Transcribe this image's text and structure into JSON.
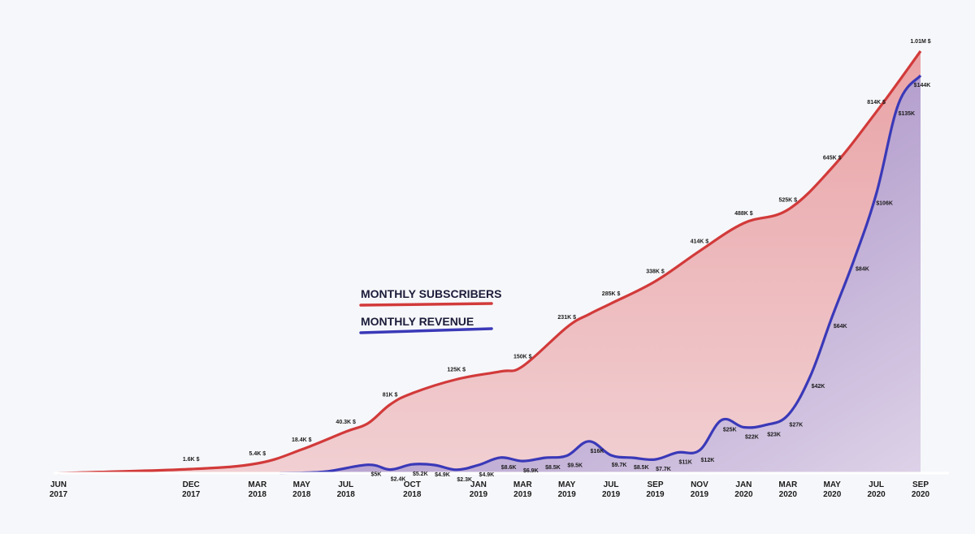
{
  "chart_data": {
    "type": "area",
    "x_ticks": [
      {
        "month": "JUN",
        "year": "2017"
      },
      {
        "month": "DEC",
        "year": "2017"
      },
      {
        "month": "MAR",
        "year": "2018"
      },
      {
        "month": "MAY",
        "year": "2018"
      },
      {
        "month": "JUL",
        "year": "2018"
      },
      {
        "month": "OCT",
        "year": "2018"
      },
      {
        "month": "JAN",
        "year": "2019"
      },
      {
        "month": "MAR",
        "year": "2019"
      },
      {
        "month": "MAY",
        "year": "2019"
      },
      {
        "month": "JUL",
        "year": "2019"
      },
      {
        "month": "SEP",
        "year": "2019"
      },
      {
        "month": "NOV",
        "year": "2019"
      },
      {
        "month": "JAN",
        "year": "2020"
      },
      {
        "month": "MAR",
        "year": "2020"
      },
      {
        "month": "MAY",
        "year": "2020"
      },
      {
        "month": "JUL",
        "year": "2020"
      },
      {
        "month": "SEP",
        "year": "2020"
      }
    ],
    "legend": [
      {
        "label": "MONTHLY SUBSCRIBERS",
        "color": "#d23a3a"
      },
      {
        "label": "MONTHLY REVENUE",
        "color": "#3a39b8"
      }
    ],
    "series": [
      {
        "name": "MONTHLY SUBSCRIBERS",
        "color": "#d23a3a",
        "fill_top": "#e9a3a6",
        "fill_bottom": "#f1cfd2",
        "points": [
          {
            "date": "2017-06",
            "value": 0
          },
          {
            "date": "2017-12",
            "value": 1600,
            "label": "1.6K $"
          },
          {
            "date": "2018-03",
            "value": 5400,
            "label": "5.4K $"
          },
          {
            "date": "2018-05",
            "value": 18400,
            "label": "18.4K $"
          },
          {
            "date": "2018-07",
            "value": 40300,
            "label": "40.3K $"
          },
          {
            "date": "2018-08",
            "value": 52000
          },
          {
            "date": "2018-09",
            "value": 81000,
            "label": "81K $"
          },
          {
            "date": "2018-10",
            "value": 100000
          },
          {
            "date": "2018-12",
            "value": 125000,
            "label": "125K $"
          },
          {
            "date": "2019-02",
            "value": 140000
          },
          {
            "date": "2019-03",
            "value": 150000,
            "label": "150K $"
          },
          {
            "date": "2019-05",
            "value": 231000,
            "label": "231K $"
          },
          {
            "date": "2019-06",
            "value": 260000
          },
          {
            "date": "2019-07",
            "value": 285000,
            "label": "285K $"
          },
          {
            "date": "2019-09",
            "value": 338000,
            "label": "338K $"
          },
          {
            "date": "2019-11",
            "value": 414000,
            "label": "414K $"
          },
          {
            "date": "2020-01",
            "value": 488000,
            "label": "488K $"
          },
          {
            "date": "2020-03",
            "value": 525000,
            "label": "525K $"
          },
          {
            "date": "2020-05",
            "value": 645000,
            "label": "645K $"
          },
          {
            "date": "2020-07",
            "value": 814000,
            "label": "814K $"
          },
          {
            "date": "2020-09",
            "value": 1010000,
            "label": "1.01M $"
          }
        ]
      },
      {
        "name": "MONTHLY REVENUE",
        "color": "#3a39b8",
        "fill_top": "#8e6fb4",
        "fill_bottom": "#ddd2e8",
        "points": [
          {
            "date": "2018-04",
            "value": 0
          },
          {
            "date": "2018-06",
            "value": 1000
          },
          {
            "date": "2018-08",
            "value": 5000,
            "label": "$5K"
          },
          {
            "date": "2018-09",
            "value": 2400,
            "label": "$2.4K"
          },
          {
            "date": "2018-10",
            "value": 5200,
            "label": "$5.2K"
          },
          {
            "date": "2018-11",
            "value": 4900,
            "label": "$4.9K"
          },
          {
            "date": "2018-12",
            "value": 2300,
            "label": "$2.3K"
          },
          {
            "date": "2019-01",
            "value": 4900,
            "label": "$4.9K"
          },
          {
            "date": "2019-02",
            "value": 8600,
            "label": "$8.6K"
          },
          {
            "date": "2019-03",
            "value": 6900,
            "label": "$6.9K"
          },
          {
            "date": "2019-04",
            "value": 8500,
            "label": "$8.5K"
          },
          {
            "date": "2019-05",
            "value": 9500,
            "label": "$9.5K"
          },
          {
            "date": "2019-06",
            "value": 16000,
            "label": "$16K"
          },
          {
            "date": "2019-07",
            "value": 9700,
            "label": "$9.7K"
          },
          {
            "date": "2019-08",
            "value": 8500,
            "label": "$8.5K"
          },
          {
            "date": "2019-09",
            "value": 7700,
            "label": "$7.7K"
          },
          {
            "date": "2019-10",
            "value": 11000,
            "label": "$11K"
          },
          {
            "date": "2019-11",
            "value": 12000,
            "label": "$12K"
          },
          {
            "date": "2019-12",
            "value": 25000,
            "label": "$25K"
          },
          {
            "date": "2020-01",
            "value": 22000,
            "label": "$22K"
          },
          {
            "date": "2020-02",
            "value": 23000,
            "label": "$23K"
          },
          {
            "date": "2020-03",
            "value": 27000,
            "label": "$27K"
          },
          {
            "date": "2020-04",
            "value": 42000,
            "label": "$42K"
          },
          {
            "date": "2020-05",
            "value": 64000,
            "label": "$64K"
          },
          {
            "date": "2020-06",
            "value": 84000,
            "label": "$84K"
          },
          {
            "date": "2020-07",
            "value": 106000,
            "label": "$106K"
          },
          {
            "date": "2020-08",
            "value": 135000,
            "label": "$135K"
          },
          {
            "date": "2020-09",
            "value": 144000,
            "label": "$144K"
          }
        ]
      }
    ],
    "grid": false
  }
}
